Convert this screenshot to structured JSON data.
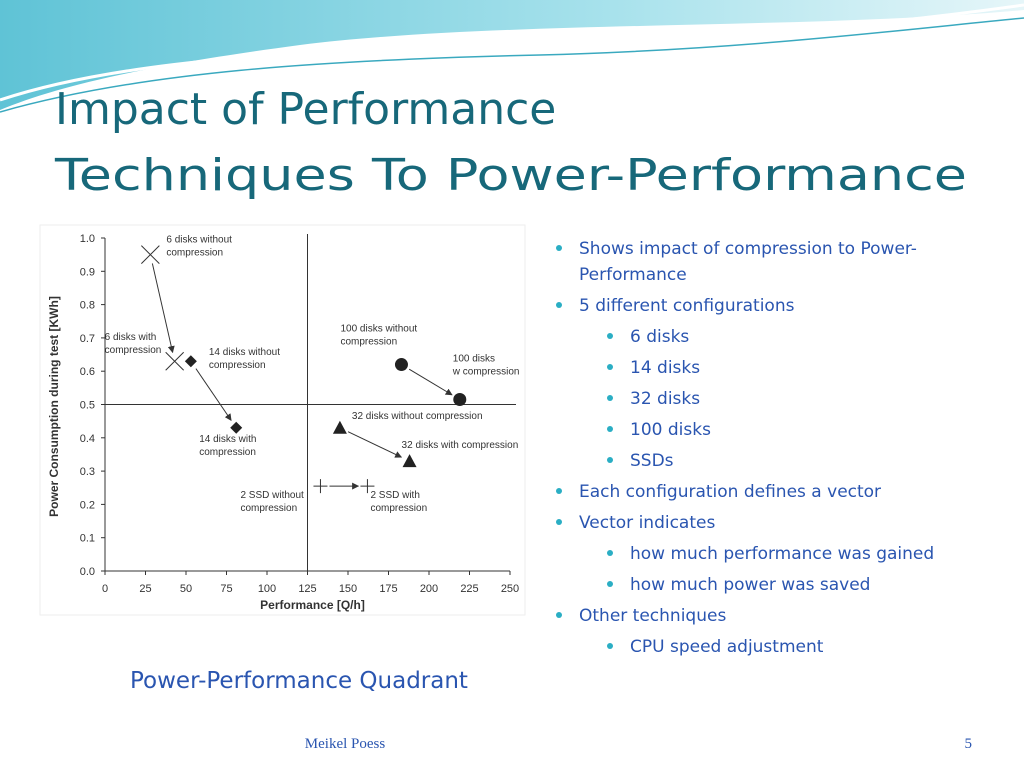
{
  "title": [
    "Impact of Performance",
    "Techniques To Power-Performance"
  ],
  "chart_data": {
    "type": "scatter",
    "xlabel": "Performance [Q/h]",
    "ylabel": "Power Consumption during test [KWh]",
    "xlim": [
      0,
      250
    ],
    "ylim": [
      0,
      1.0
    ],
    "xticks": [
      0,
      25,
      50,
      75,
      100,
      125,
      150,
      175,
      200,
      225,
      250
    ],
    "yticks": [
      {
        "value": 0,
        "label": "0.0"
      },
      0.1,
      0.2,
      0.3,
      0.4,
      0.5,
      0.6,
      0.7,
      0.8,
      0.9,
      {
        "value": 1,
        "label": "1.0"
      }
    ],
    "quadrant": {
      "x": 125,
      "y": 0.5
    },
    "series": [
      {
        "marker": "x",
        "x": [
          28,
          43
        ],
        "values": [
          0.95,
          0.63
        ],
        "labels": [
          [
            "6 disks without",
            "compression"
          ],
          [
            "6 disks with",
            "compression"
          ]
        ]
      },
      {
        "marker": "diamond",
        "x": [
          53,
          81
        ],
        "values": [
          0.63,
          0.43
        ],
        "labels": [
          [
            "14 disks without",
            "compression"
          ],
          [
            "14 disks with",
            "compression"
          ]
        ]
      },
      {
        "marker": "circle",
        "x": [
          183,
          219
        ],
        "values": [
          0.62,
          0.515
        ],
        "labels": [
          [
            "100 disks without",
            "compression"
          ],
          [
            "100 disks",
            "w compression"
          ]
        ]
      },
      {
        "marker": "triangle",
        "x": [
          145,
          188
        ],
        "values": [
          0.43,
          0.33
        ],
        "labels": [
          [
            "32 disks without compression"
          ],
          [
            "32 disks with compression"
          ]
        ]
      },
      {
        "marker": "plus",
        "x": [
          133,
          162
        ],
        "values": [
          0.255,
          0.255
        ],
        "labels": [
          [
            "2 SSD without",
            "compression"
          ],
          [
            "2 SSD with",
            "compression"
          ]
        ]
      }
    ]
  },
  "caption": "Power-Performance Quadrant",
  "bullets": [
    {
      "level": 1,
      "lines": [
        "Shows impact of compression to Power-",
        "Performance"
      ]
    },
    {
      "level": 1,
      "lines": [
        "5 different configurations"
      ]
    },
    {
      "level": 2,
      "lines": [
        "6 disks"
      ]
    },
    {
      "level": 2,
      "lines": [
        "14 disks"
      ]
    },
    {
      "level": 2,
      "lines": [
        "32 disks"
      ]
    },
    {
      "level": 2,
      "lines": [
        "100 disks"
      ]
    },
    {
      "level": 2,
      "lines": [
        "SSDs"
      ]
    },
    {
      "level": 1,
      "lines": [
        "Each configuration defines a vector"
      ]
    },
    {
      "level": 1,
      "lines": [
        "Vector indicates"
      ]
    },
    {
      "level": 2,
      "lines": [
        "how much performance was gained"
      ]
    },
    {
      "level": 2,
      "lines": [
        "how much power was saved"
      ]
    },
    {
      "level": 1,
      "lines": [
        "Other techniques"
      ]
    },
    {
      "level": 2,
      "lines": [
        "CPU speed adjustment"
      ]
    }
  ],
  "footer": "Meikel Poess",
  "page_number": "5"
}
